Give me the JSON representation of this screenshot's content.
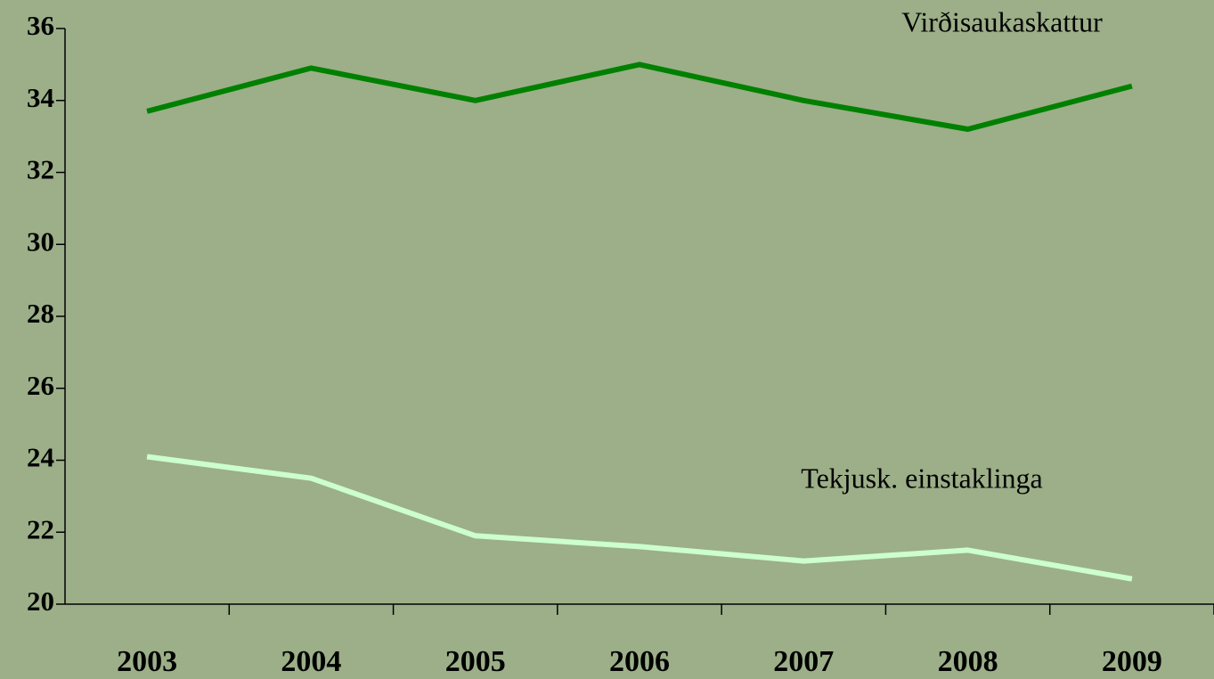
{
  "chart_data": {
    "type": "line",
    "categories": [
      "2003",
      "2004",
      "2005",
      "2006",
      "2007",
      "2008",
      "2009"
    ],
    "series": [
      {
        "name": "Virðisaukaskattur",
        "color": "#008000",
        "values": [
          33.7,
          34.9,
          34.0,
          35.0,
          34.0,
          33.2,
          34.4
        ]
      },
      {
        "name": "Tekjusk. einstaklinga",
        "color": "#ccffcc",
        "values": [
          24.1,
          23.5,
          21.9,
          21.6,
          21.2,
          21.5,
          20.7
        ]
      }
    ],
    "ylim": [
      20,
      36
    ],
    "yticks": [
      20,
      22,
      24,
      26,
      28,
      30,
      32,
      34,
      36
    ],
    "grid": false
  }
}
